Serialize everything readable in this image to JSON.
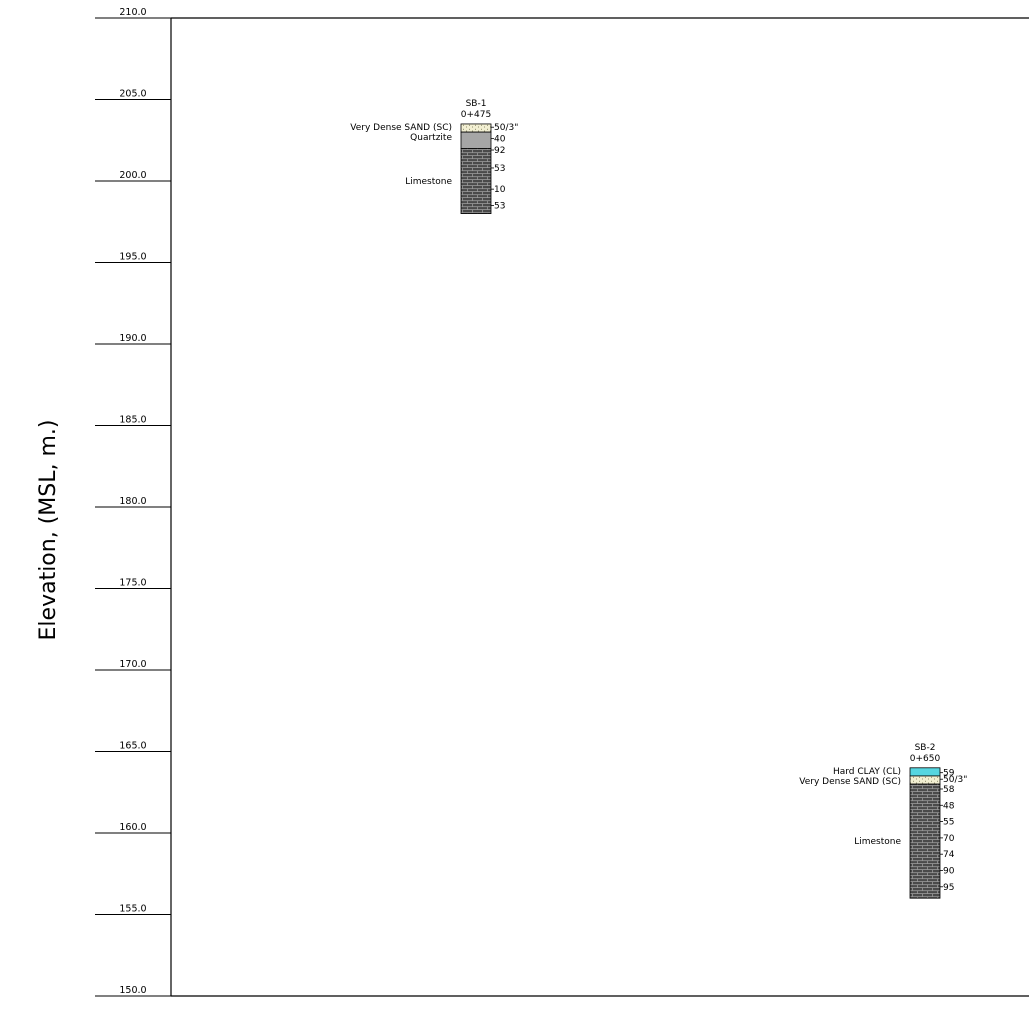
{
  "axis": {
    "title": "Elevation, (MSL,  m.)",
    "min": 150.0,
    "max": 210.0,
    "ticks": [
      "210.0",
      "205.0",
      "200.0",
      "195.0",
      "190.0",
      "185.0",
      "180.0",
      "175.0",
      "170.0",
      "165.0",
      "160.0",
      "155.0",
      "150.0"
    ]
  },
  "colors": {
    "rock": "#4a4a4a",
    "rock_lines": "#9a9a9a",
    "sand": "#f2efd2",
    "quartzite": "#a6a6a6",
    "clay": "#56d6e0",
    "line": "#000000"
  },
  "boreholes": [
    {
      "id": "SB-1",
      "station": "0+475",
      "layers": [
        {
          "label": "Very Dense SAND (SC)",
          "type": "sand",
          "top": 203.5,
          "bottom": 203.0
        },
        {
          "label": "Quartzite",
          "type": "quartzite",
          "top": 203.0,
          "bottom": 202.0
        },
        {
          "label": "Limestone",
          "type": "limestone",
          "top": 202.0,
          "bottom": 198.0
        }
      ],
      "samples": [
        {
          "elev": 203.3,
          "value": "50/3\""
        },
        {
          "elev": 202.6,
          "value": "40"
        },
        {
          "elev": 201.9,
          "value": "92"
        },
        {
          "elev": 200.8,
          "value": "53"
        },
        {
          "elev": 199.5,
          "value": "10"
        },
        {
          "elev": 198.5,
          "value": "53"
        }
      ]
    },
    {
      "id": "SB-2",
      "station": "0+650",
      "layers": [
        {
          "label": "Hard CLAY (CL)",
          "type": "clay",
          "top": 164.0,
          "bottom": 163.5
        },
        {
          "label": "Very Dense SAND (SC)",
          "type": "sand",
          "top": 163.5,
          "bottom": 163.0
        },
        {
          "label": "Limestone",
          "type": "limestone",
          "top": 163.0,
          "bottom": 156.0
        }
      ],
      "samples": [
        {
          "elev": 163.7,
          "value": "59"
        },
        {
          "elev": 163.3,
          "value": "50/3\""
        },
        {
          "elev": 162.7,
          "value": "58"
        },
        {
          "elev": 161.7,
          "value": "48"
        },
        {
          "elev": 160.7,
          "value": "55"
        },
        {
          "elev": 159.7,
          "value": "70"
        },
        {
          "elev": 158.7,
          "value": "74"
        },
        {
          "elev": 157.7,
          "value": "90"
        },
        {
          "elev": 156.7,
          "value": "95"
        }
      ]
    }
  ]
}
